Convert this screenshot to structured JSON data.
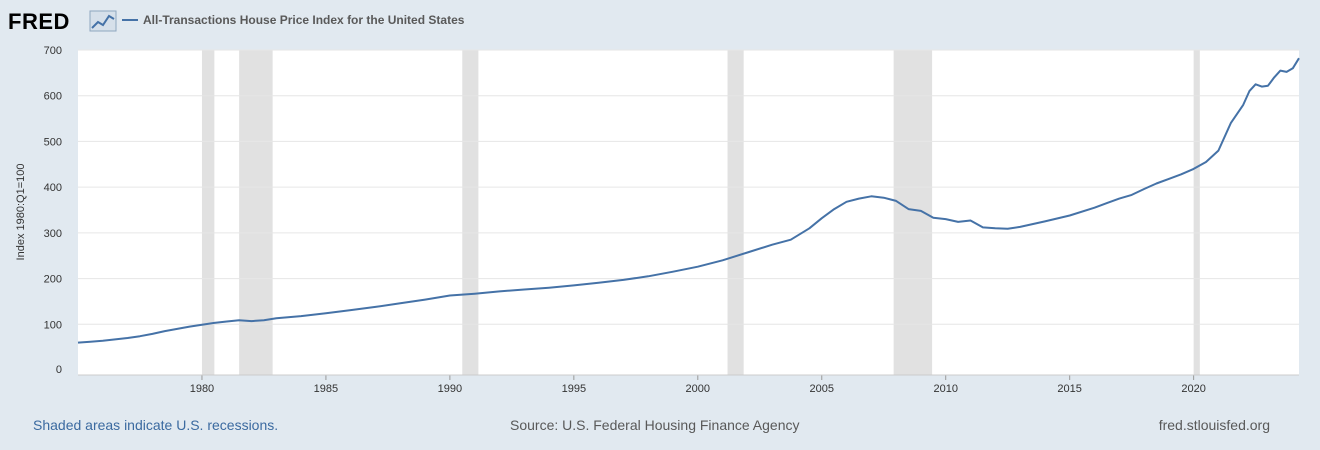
{
  "logo": {
    "text": "FRED"
  },
  "colors": {
    "line": "#4572a7",
    "recession": "#e1e1e1",
    "grid": "#e6e6e6",
    "background": "#e1e9f0",
    "plot_bg": "#ffffff"
  },
  "icons": {
    "logo_chart": "chart-line-icon"
  },
  "footer": {
    "left": "Shaded areas indicate U.S. recessions.",
    "center": "Source: U.S. Federal Housing Finance Agency",
    "right": "fred.stlouisfed.org"
  },
  "chart_data": {
    "type": "line",
    "title": "",
    "legend": [
      "All-Transactions House Price Index for the United States"
    ],
    "ylabel": "Index 1980:Q1=100",
    "xlabel": "",
    "xlim": [
      1975.0,
      2024.25
    ],
    "ylim": [
      0,
      700
    ],
    "yticks": [
      0,
      100,
      200,
      300,
      400,
      500,
      600,
      700
    ],
    "xticks": [
      1980,
      1985,
      1990,
      1995,
      2000,
      2005,
      2010,
      2015,
      2020
    ],
    "grid": true,
    "recessions": [
      [
        1980.0,
        1980.5
      ],
      [
        1981.5,
        1982.85
      ],
      [
        1990.5,
        1991.15
      ],
      [
        2001.2,
        2001.85
      ],
      [
        2007.9,
        2009.45
      ],
      [
        2020.0,
        2020.25
      ]
    ],
    "series": [
      {
        "name": "All-Transactions House Price Index for the United States",
        "x": [
          1975.0,
          1975.5,
          1976.0,
          1976.5,
          1977.0,
          1977.5,
          1978.0,
          1978.5,
          1979.0,
          1979.5,
          1980.0,
          1980.5,
          1981.0,
          1981.5,
          1982.0,
          1982.5,
          1983.0,
          1984.0,
          1985.0,
          1986.0,
          1987.0,
          1988.0,
          1989.0,
          1990.0,
          1991.0,
          1992.0,
          1993.0,
          1994.0,
          1995.0,
          1996.0,
          1997.0,
          1998.0,
          1999.0,
          2000.0,
          2001.0,
          2002.0,
          2003.0,
          2003.75,
          2004.5,
          2005.0,
          2005.5,
          2006.0,
          2006.5,
          2007.0,
          2007.5,
          2008.0,
          2008.5,
          2009.0,
          2009.5,
          2010.0,
          2010.5,
          2011.0,
          2011.5,
          2012.0,
          2012.5,
          2013.0,
          2014.0,
          2015.0,
          2016.0,
          2016.5,
          2017.0,
          2017.5,
          2018.0,
          2018.5,
          2019.0,
          2019.5,
          2020.0,
          2020.5,
          2021.0,
          2021.5,
          2022.0,
          2022.25,
          2022.5,
          2022.75,
          2023.0,
          2023.25,
          2023.5,
          2023.75,
          2024.0,
          2024.25
        ],
        "y": [
          60,
          62,
          64,
          67,
          70,
          74,
          79,
          85,
          90,
          95,
          99,
          103,
          106,
          109,
          107,
          109,
          113,
          118,
          124,
          131,
          138,
          146,
          154,
          163,
          167,
          172,
          176,
          180,
          185,
          191,
          197,
          205,
          215,
          226,
          240,
          257,
          274,
          285,
          310,
          332,
          352,
          368,
          375,
          380,
          377,
          370,
          352,
          348,
          333,
          330,
          324,
          327,
          312,
          310,
          309,
          313,
          325,
          338,
          355,
          365,
          375,
          383,
          396,
          408,
          418,
          428,
          440,
          455,
          480,
          540,
          580,
          610,
          625,
          620,
          622,
          640,
          655,
          652,
          660,
          682
        ]
      }
    ]
  }
}
